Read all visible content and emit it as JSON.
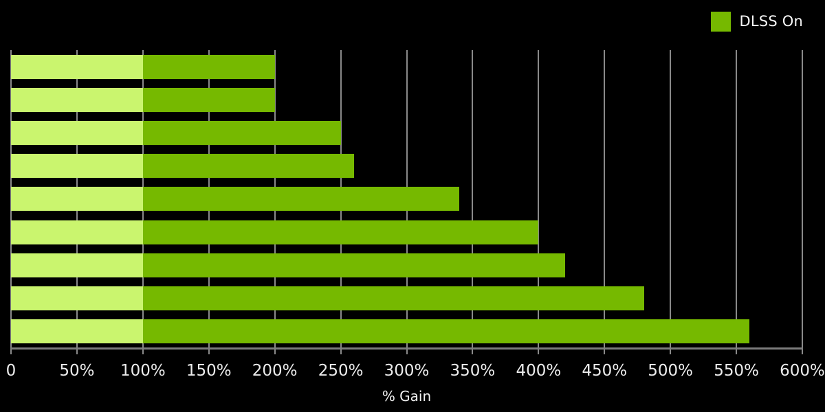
{
  "legend": {
    "label": "DLSS On",
    "swatch_color": "#76b900"
  },
  "colors": {
    "background": "#000000",
    "bar_baseline": "#caf56e",
    "bar_dlss_on": "#76b900",
    "gridline": "#8a8a8a",
    "axis_line": "#7d7d7d",
    "tick_text": "#ececec",
    "title_text": "#f2f2f2"
  },
  "chart_data": {
    "type": "bar",
    "orientation": "horizontal",
    "title": "",
    "xlabel": "% Gain",
    "ylabel": "",
    "xlim": [
      0,
      600
    ],
    "grid": true,
    "x_ticks": [
      "0",
      "50%",
      "100%",
      "150%",
      "200%",
      "250%",
      "300%",
      "350%",
      "400%",
      "450%",
      "500%",
      "550%",
      "600%"
    ],
    "x_tick_values": [
      0,
      50,
      100,
      150,
      200,
      250,
      300,
      350,
      400,
      450,
      500,
      550,
      600
    ],
    "baseline_split": 100,
    "values": [
      200,
      200,
      250,
      260,
      340,
      400,
      420,
      480,
      560
    ],
    "series": [
      {
        "name": "Baseline 0-100%",
        "color": "#caf56e"
      },
      {
        "name": "DLSS On",
        "color": "#76b900"
      }
    ],
    "legend_entries": [
      {
        "label": "DLSS On",
        "color": "#76b900",
        "position": "top-right"
      }
    ]
  }
}
